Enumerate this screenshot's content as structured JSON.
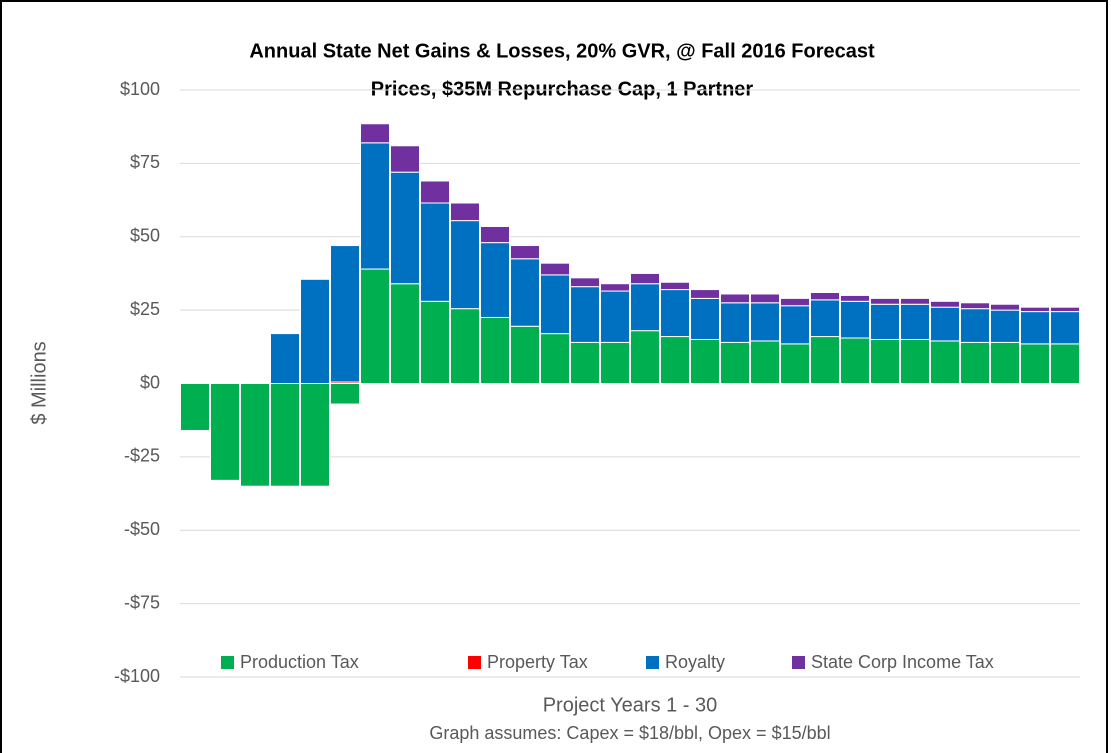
{
  "chart_data": {
    "type": "stacked-bar",
    "title": [
      "Annual State Net Gains & Losses, 20% GVR, @ Fall 2016 Forecast",
      "Prices, $35M Repurchase Cap, 1 Partner"
    ],
    "y_label": "$ Millions",
    "x_label": "Project Years 1 - 30",
    "note": "Graph assumes:  Capex = $18/bbl, Opex = $15/bbl",
    "categories": [
      null,
      null,
      null,
      null,
      null,
      null,
      null,
      null,
      null,
      null,
      null,
      null,
      null,
      null,
      null,
      null,
      null,
      null,
      null,
      null,
      null,
      null,
      null,
      null,
      null,
      null,
      null,
      null,
      null,
      null
    ],
    "series": [
      {
        "name": "Production Tax",
        "color": "#00b050",
        "values": [
          -16,
          -33,
          -35,
          -35,
          -35,
          -7,
          39,
          34,
          28,
          25.5,
          22.5,
          19.5,
          17,
          14,
          14,
          18,
          16,
          15,
          14,
          14.5,
          13.5,
          16,
          15.5,
          15,
          15,
          14.5,
          14,
          14,
          13.5,
          13.5
        ]
      },
      {
        "name": "Property Tax",
        "color": "#ff0000",
        "values": [
          0,
          0,
          0,
          0,
          0,
          0.5,
          0,
          0,
          0,
          0,
          0,
          0,
          0,
          0,
          0,
          0,
          0,
          0,
          0,
          0,
          0,
          0,
          0,
          0,
          0,
          0,
          0,
          0,
          0,
          0
        ]
      },
      {
        "name": "Royalty",
        "color": "#0070c0",
        "values": [
          0,
          0,
          0,
          17,
          35.5,
          46.5,
          43,
          38,
          33.5,
          30,
          25.5,
          23,
          20,
          19,
          17.5,
          16,
          16,
          14,
          13.5,
          13,
          13,
          12.5,
          12.5,
          12,
          12,
          11.5,
          11.5,
          11,
          11,
          11
        ]
      },
      {
        "name": "State Corp Income Tax",
        "color": "#7030a0",
        "values": [
          0,
          0,
          0,
          0,
          0,
          0,
          6.5,
          9,
          7.5,
          6,
          5.5,
          4.5,
          4,
          3,
          2.5,
          3.5,
          2.5,
          3,
          3,
          3,
          2.5,
          2.5,
          2,
          2,
          2,
          2,
          2,
          2,
          1.5,
          1.5
        ]
      }
    ],
    "ylim": [
      -100,
      100
    ],
    "yticks": [
      {
        "value": -100,
        "label": "-$100"
      },
      {
        "value": -75,
        "label": "-$75"
      },
      {
        "value": -50,
        "label": "-$50"
      },
      {
        "value": -25,
        "label": "-$25"
      },
      {
        "value": 0,
        "label": "$0"
      },
      {
        "value": 25,
        "label": "$25"
      },
      {
        "value": 50,
        "label": "$50"
      },
      {
        "value": 75,
        "label": "$75"
      },
      {
        "value": 100,
        "label": "$100"
      }
    ],
    "grid": true,
    "legend": "bottom"
  }
}
